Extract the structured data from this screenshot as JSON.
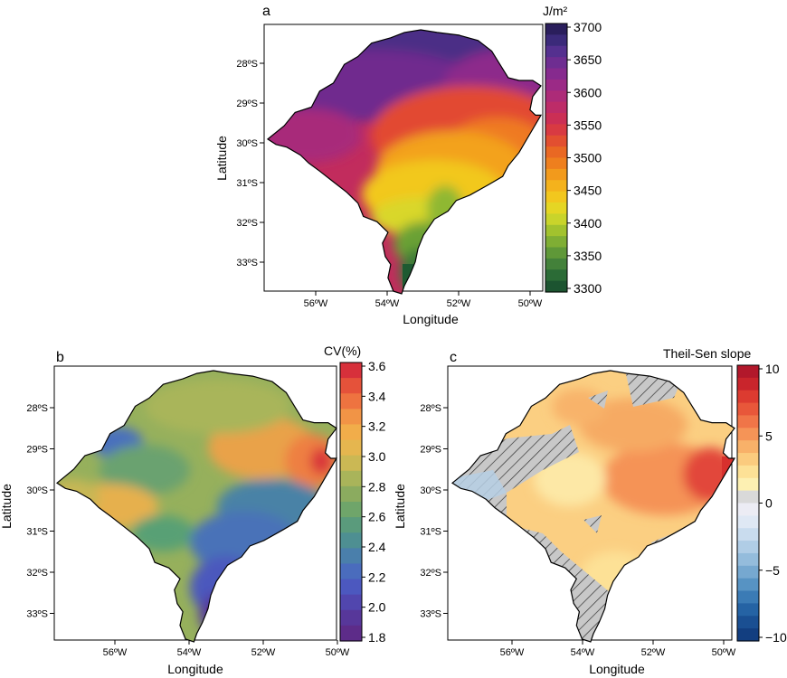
{
  "panels": {
    "a": {
      "letter": "a",
      "xlabel": "Longitude",
      "ylabel": "Latitude",
      "xticks": [
        "56ºW",
        "54ºW",
        "52ºW",
        "50ºW"
      ],
      "yticks": [
        "28ºS",
        "29ºS",
        "30ºS",
        "31ºS",
        "32ºS",
        "33ºS"
      ],
      "colorbar": {
        "title": "J/m²",
        "ticks": [
          "3700",
          "3650",
          "3600",
          "3550",
          "3500",
          "3450",
          "3400",
          "3350",
          "3300"
        ],
        "colors": [
          "#2a1e5c",
          "#3b2a7a",
          "#54308f",
          "#6e2d91",
          "#862a8e",
          "#9b2a86",
          "#ad2b78",
          "#bd2c68",
          "#cb2f55",
          "#d83a42",
          "#e24f30",
          "#e96823",
          "#ee7f1e",
          "#f29a1c",
          "#f4b21c",
          "#f2c71e",
          "#e5d624",
          "#c9d42b",
          "#a2c22e",
          "#7fae34",
          "#5f9838",
          "#43813a",
          "#2b6b36",
          "#1c5430"
        ]
      }
    },
    "b": {
      "letter": "b",
      "xlabel": "Longitude",
      "ylabel": "Latitude",
      "xticks": [
        "56ºW",
        "54ºW",
        "52ºW",
        "50ºW"
      ],
      "yticks": [
        "28ºS",
        "29ºS",
        "30ºS",
        "31ºS",
        "32ºS",
        "33ºS"
      ],
      "colorbar": {
        "title": "CV(%)",
        "ticks": [
          "3.6",
          "3.4",
          "3.2",
          "3.0",
          "2.8",
          "2.6",
          "2.4",
          "2.2",
          "2.0",
          "1.8"
        ],
        "colors": [
          "#d7303b",
          "#e5523a",
          "#ee7340",
          "#f19446",
          "#f1ad4a",
          "#e5b64f",
          "#cbb854",
          "#a9b45a",
          "#8bab5f",
          "#6fa56a",
          "#5a9b7c",
          "#4e8f92",
          "#4a7fab",
          "#4a6cbd",
          "#4c58bf",
          "#5146ae",
          "#57379a",
          "#5d2c89"
        ]
      }
    },
    "c": {
      "letter": "c",
      "xlabel": "Longitude",
      "ylabel": "Latitude",
      "xticks": [
        "56ºW",
        "54ºW",
        "52ºW",
        "50ºW"
      ],
      "yticks": [
        "28ºS",
        "29ºS",
        "30ºS",
        "31ºS",
        "32ºS",
        "33ºS"
      ],
      "colorbar": {
        "title": "Theil-Sen slope",
        "ticks": [
          "10",
          "5",
          "0",
          "−5",
          "−10"
        ],
        "colors": [
          "#b2182b",
          "#c9252c",
          "#dc3b30",
          "#e8573a",
          "#f07548",
          "#f59457",
          "#f8b169",
          "#fbcb7e",
          "#fde196",
          "#fdf0b2",
          "#d9d9d9",
          "#ececf4",
          "#dfe8f4",
          "#c9dcee",
          "#b0cde6",
          "#94bcdc",
          "#76a8d0",
          "#5793c3",
          "#3b7bb5",
          "#2563a4",
          "#1a4f92",
          "#123e80"
        ]
      }
    }
  }
}
